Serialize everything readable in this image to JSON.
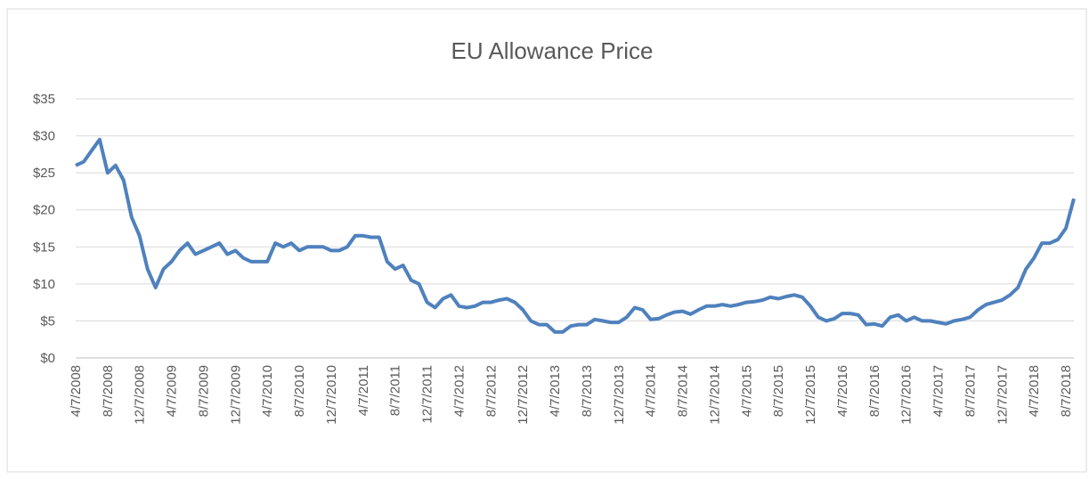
{
  "chart_data": {
    "type": "line",
    "title": "EU Allowance Price",
    "categories": [
      "4/7/2008",
      null,
      null,
      null,
      "8/7/2008",
      null,
      null,
      null,
      "12/7/2008",
      null,
      null,
      null,
      "4/7/2009",
      null,
      null,
      null,
      "8/7/2009",
      null,
      null,
      null,
      "12/7/2009",
      null,
      null,
      null,
      "4/7/2010",
      null,
      null,
      null,
      "8/7/2010",
      null,
      null,
      null,
      "12/7/2010",
      null,
      null,
      null,
      "4/7/2011",
      null,
      null,
      null,
      "8/7/2011",
      null,
      null,
      null,
      "12/7/2011",
      null,
      null,
      null,
      "4/7/2012",
      null,
      null,
      null,
      "8/7/2012",
      null,
      null,
      null,
      "12/7/2012",
      null,
      null,
      null,
      "4/7/2013",
      null,
      null,
      null,
      "8/7/2013",
      null,
      null,
      null,
      "12/7/2013",
      null,
      null,
      null,
      "4/7/2014",
      null,
      null,
      null,
      "8/7/2014",
      null,
      null,
      null,
      "12/7/2014",
      null,
      null,
      null,
      "4/7/2015",
      null,
      null,
      null,
      "8/7/2015",
      null,
      null,
      null,
      "12/7/2015",
      null,
      null,
      null,
      "4/7/2016",
      null,
      null,
      null,
      "8/7/2016",
      null,
      null,
      null,
      "12/7/2016",
      null,
      null,
      null,
      "4/7/2017",
      null,
      null,
      null,
      "8/7/2017",
      null,
      null,
      null,
      "12/7/2017",
      null,
      null,
      null,
      "4/7/2018",
      null,
      null,
      null,
      "8/7/2018",
      null
    ],
    "values": [
      26,
      26.5,
      28,
      29.5,
      25,
      26,
      24,
      19,
      16.5,
      12,
      9.5,
      12,
      13,
      14.5,
      15.5,
      14,
      14.5,
      15,
      15.5,
      14,
      14.5,
      13.5,
      13,
      13,
      13,
      15.5,
      15,
      15.5,
      14.5,
      15,
      15,
      15,
      14.5,
      14.5,
      15,
      16.5,
      16.5,
      16.3,
      16.3,
      13,
      12,
      12.5,
      10.5,
      10,
      7.5,
      6.8,
      8,
      8.5,
      7,
      6.8,
      7,
      7.5,
      7.5,
      7.8,
      8,
      7.5,
      6.5,
      5,
      4.5,
      4.5,
      3.5,
      3.5,
      4.3,
      4.5,
      4.5,
      5.2,
      5,
      4.8,
      4.8,
      5.5,
      6.8,
      6.5,
      5.2,
      5.3,
      5.8,
      6.2,
      6.3,
      5.9,
      6.5,
      7,
      7,
      7.2,
      7,
      7.2,
      7.5,
      7.6,
      7.8,
      8.2,
      8,
      8.3,
      8.5,
      8.2,
      7,
      5.5,
      5,
      5.3,
      6,
      6,
      5.8,
      4.5,
      4.6,
      4.3,
      5.5,
      5.8,
      5,
      5.5,
      5,
      5,
      4.8,
      4.6,
      5,
      5.2,
      5.5,
      6.5,
      7.2,
      7.5,
      7.8,
      8.5,
      9.5,
      12,
      13.5,
      15.5,
      15.5,
      16,
      17.5,
      21.5
    ],
    "color": "#4f81bd",
    "ylim": [
      0,
      35
    ],
    "yticks": [
      {
        "value": 0,
        "label": "$0"
      },
      {
        "value": 5,
        "label": "$5"
      },
      {
        "value": 10,
        "label": "$10"
      },
      {
        "value": 15,
        "label": "$15"
      },
      {
        "value": 20,
        "label": "$20"
      },
      {
        "value": 25,
        "label": "$25"
      },
      {
        "value": 30,
        "label": "$30"
      },
      {
        "value": 35,
        "label": "$35"
      }
    ],
    "grid": true
  }
}
